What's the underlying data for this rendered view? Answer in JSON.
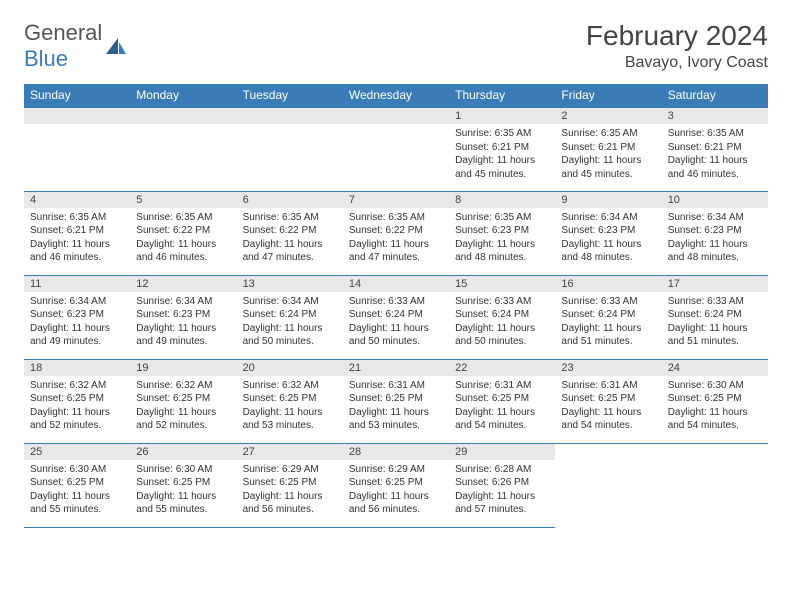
{
  "logo": {
    "general": "General",
    "blue": "Blue"
  },
  "title": "February 2024",
  "location": "Bavayo, Ivory Coast",
  "colors": {
    "header_bg": "#3a7cb8",
    "header_text": "#ffffff",
    "daynum_bg": "#e8e8e8",
    "border": "#3a7cb8",
    "text": "#333333",
    "page_bg": "#ffffff"
  },
  "typography": {
    "title_fontsize": 28,
    "location_fontsize": 16,
    "header_fontsize": 12,
    "cell_fontsize": 10
  },
  "weekdays": [
    "Sunday",
    "Monday",
    "Tuesday",
    "Wednesday",
    "Thursday",
    "Friday",
    "Saturday"
  ],
  "weeks": [
    [
      null,
      null,
      null,
      null,
      {
        "d": "1",
        "sr": "6:35 AM",
        "ss": "6:21 PM",
        "dl": "11 hours and 45 minutes."
      },
      {
        "d": "2",
        "sr": "6:35 AM",
        "ss": "6:21 PM",
        "dl": "11 hours and 45 minutes."
      },
      {
        "d": "3",
        "sr": "6:35 AM",
        "ss": "6:21 PM",
        "dl": "11 hours and 46 minutes."
      }
    ],
    [
      {
        "d": "4",
        "sr": "6:35 AM",
        "ss": "6:21 PM",
        "dl": "11 hours and 46 minutes."
      },
      {
        "d": "5",
        "sr": "6:35 AM",
        "ss": "6:22 PM",
        "dl": "11 hours and 46 minutes."
      },
      {
        "d": "6",
        "sr": "6:35 AM",
        "ss": "6:22 PM",
        "dl": "11 hours and 47 minutes."
      },
      {
        "d": "7",
        "sr": "6:35 AM",
        "ss": "6:22 PM",
        "dl": "11 hours and 47 minutes."
      },
      {
        "d": "8",
        "sr": "6:35 AM",
        "ss": "6:23 PM",
        "dl": "11 hours and 48 minutes."
      },
      {
        "d": "9",
        "sr": "6:34 AM",
        "ss": "6:23 PM",
        "dl": "11 hours and 48 minutes."
      },
      {
        "d": "10",
        "sr": "6:34 AM",
        "ss": "6:23 PM",
        "dl": "11 hours and 48 minutes."
      }
    ],
    [
      {
        "d": "11",
        "sr": "6:34 AM",
        "ss": "6:23 PM",
        "dl": "11 hours and 49 minutes."
      },
      {
        "d": "12",
        "sr": "6:34 AM",
        "ss": "6:23 PM",
        "dl": "11 hours and 49 minutes."
      },
      {
        "d": "13",
        "sr": "6:34 AM",
        "ss": "6:24 PM",
        "dl": "11 hours and 50 minutes."
      },
      {
        "d": "14",
        "sr": "6:33 AM",
        "ss": "6:24 PM",
        "dl": "11 hours and 50 minutes."
      },
      {
        "d": "15",
        "sr": "6:33 AM",
        "ss": "6:24 PM",
        "dl": "11 hours and 50 minutes."
      },
      {
        "d": "16",
        "sr": "6:33 AM",
        "ss": "6:24 PM",
        "dl": "11 hours and 51 minutes."
      },
      {
        "d": "17",
        "sr": "6:33 AM",
        "ss": "6:24 PM",
        "dl": "11 hours and 51 minutes."
      }
    ],
    [
      {
        "d": "18",
        "sr": "6:32 AM",
        "ss": "6:25 PM",
        "dl": "11 hours and 52 minutes."
      },
      {
        "d": "19",
        "sr": "6:32 AM",
        "ss": "6:25 PM",
        "dl": "11 hours and 52 minutes."
      },
      {
        "d": "20",
        "sr": "6:32 AM",
        "ss": "6:25 PM",
        "dl": "11 hours and 53 minutes."
      },
      {
        "d": "21",
        "sr": "6:31 AM",
        "ss": "6:25 PM",
        "dl": "11 hours and 53 minutes."
      },
      {
        "d": "22",
        "sr": "6:31 AM",
        "ss": "6:25 PM",
        "dl": "11 hours and 54 minutes."
      },
      {
        "d": "23",
        "sr": "6:31 AM",
        "ss": "6:25 PM",
        "dl": "11 hours and 54 minutes."
      },
      {
        "d": "24",
        "sr": "6:30 AM",
        "ss": "6:25 PM",
        "dl": "11 hours and 54 minutes."
      }
    ],
    [
      {
        "d": "25",
        "sr": "6:30 AM",
        "ss": "6:25 PM",
        "dl": "11 hours and 55 minutes."
      },
      {
        "d": "26",
        "sr": "6:30 AM",
        "ss": "6:25 PM",
        "dl": "11 hours and 55 minutes."
      },
      {
        "d": "27",
        "sr": "6:29 AM",
        "ss": "6:25 PM",
        "dl": "11 hours and 56 minutes."
      },
      {
        "d": "28",
        "sr": "6:29 AM",
        "ss": "6:25 PM",
        "dl": "11 hours and 56 minutes."
      },
      {
        "d": "29",
        "sr": "6:28 AM",
        "ss": "6:26 PM",
        "dl": "11 hours and 57 minutes."
      },
      null,
      null
    ]
  ],
  "labels": {
    "sunrise": "Sunrise:",
    "sunset": "Sunset:",
    "daylight": "Daylight:"
  }
}
